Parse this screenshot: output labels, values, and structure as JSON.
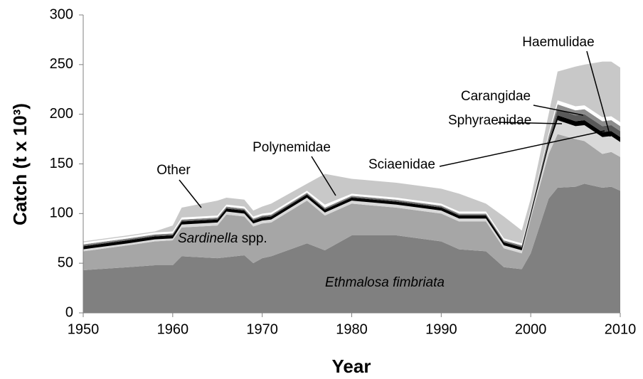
{
  "chart_data": {
    "type": "stacked_area",
    "x": [
      1950,
      1955,
      1958,
      1960,
      1961,
      1965,
      1966,
      1968,
      1969,
      1970,
      1971,
      1975,
      1977,
      1980,
      1985,
      1990,
      1992,
      1995,
      1997,
      1999,
      2000,
      2002,
      2003,
      2005,
      2006,
      2008,
      2009,
      2010
    ],
    "series": [
      {
        "name": "Ethmalosa fimbriata",
        "color": "#808080",
        "values": [
          43,
          46,
          48,
          48,
          57,
          55,
          56,
          58,
          50,
          55,
          57,
          70,
          63,
          78,
          78,
          72,
          64,
          62,
          46,
          44,
          60,
          115,
          126,
          127,
          130,
          126,
          127,
          123
        ]
      },
      {
        "name": "Sardinella spp.",
        "color": "#a6a6a6",
        "values": [
          19,
          22,
          24,
          25,
          29,
          33,
          43,
          39,
          37,
          35,
          34,
          43,
          35,
          32,
          28,
          28,
          28,
          30,
          19,
          16,
          35,
          45,
          54,
          48,
          43,
          34,
          35,
          34
        ]
      },
      {
        "name": "Sciaenidae",
        "color": "#d9d9d9",
        "values": [
          2,
          2,
          2,
          2,
          3,
          3,
          3,
          3,
          3,
          3,
          3,
          3,
          3,
          3,
          3,
          3,
          3,
          3,
          3,
          3,
          3,
          8,
          14,
          13,
          16,
          17,
          16,
          15
        ]
      },
      {
        "name": "Sphyraenidae",
        "color": "#000000",
        "values": [
          3,
          3,
          3,
          3,
          3,
          3,
          3,
          3,
          3,
          3,
          3,
          3,
          3,
          3,
          3,
          3,
          3,
          3,
          3,
          3,
          3,
          4,
          5,
          5,
          5,
          5,
          5,
          5
        ]
      },
      {
        "name": "Haemulidae",
        "color": "#595959",
        "values": [
          1,
          1,
          1,
          1,
          1,
          1,
          1,
          1,
          1,
          1,
          1,
          1,
          1,
          1,
          1,
          1,
          1,
          1,
          1,
          1,
          1,
          3,
          6,
          6,
          6,
          6,
          6,
          6
        ]
      },
      {
        "name": "Carangidae",
        "color": "#8c8c8c",
        "values": [
          1,
          1,
          1,
          1,
          1,
          1,
          1,
          1,
          1,
          1,
          1,
          1,
          1,
          1,
          1,
          1,
          1,
          1,
          1,
          1,
          1,
          3,
          5,
          5,
          5,
          5,
          5,
          5
        ]
      },
      {
        "name": "Polynemidae",
        "color": "#ffffff",
        "values": [
          2,
          2,
          2,
          2,
          2,
          2,
          2,
          2,
          2,
          2,
          2,
          2,
          3,
          2,
          2,
          2,
          2,
          2,
          2,
          2,
          2,
          3,
          4,
          4,
          4,
          4,
          4,
          4
        ]
      },
      {
        "name": "Other",
        "color": "#c8c8c8",
        "values": [
          1,
          1,
          1,
          6,
          10,
          15,
          7,
          7,
          6,
          7,
          9,
          7,
          31,
          15,
          15,
          15,
          18,
          8,
          22,
          13,
          10,
          19,
          29,
          40,
          41,
          56,
          55,
          55
        ]
      }
    ],
    "x_label": "Year",
    "y_label": "Catch (t x 10³)",
    "xlim": [
      1950,
      2010
    ],
    "xticks": [
      1950,
      1960,
      1970,
      1980,
      1990,
      2000,
      2010
    ],
    "ylim": [
      0,
      300
    ],
    "yticks": [
      0,
      50,
      100,
      150,
      200,
      250,
      300
    ]
  }
}
